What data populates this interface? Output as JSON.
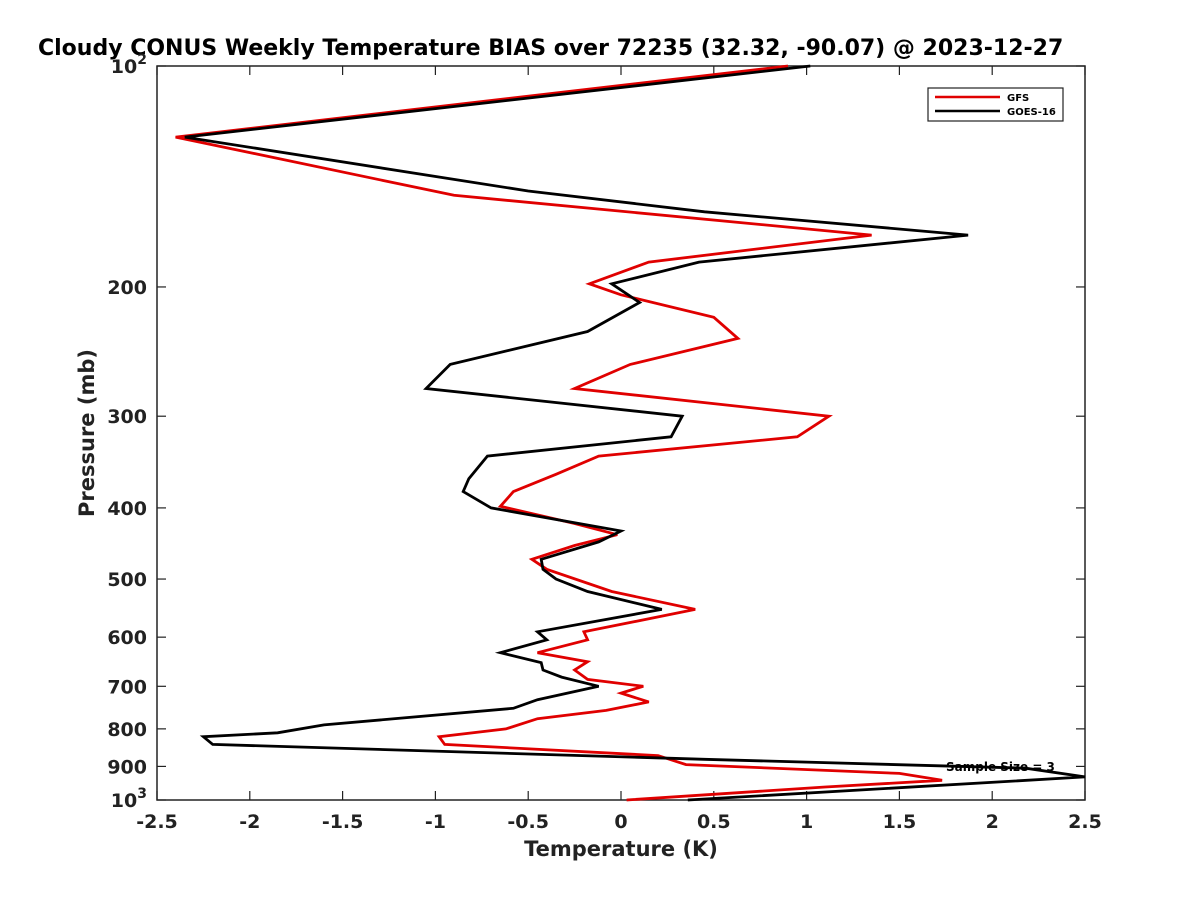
{
  "chart_data": {
    "type": "line",
    "title": "Cloudy CONUS Weekly Temperature BIAS over 72235 (32.32, -90.07) @ 2023-12-27",
    "xlabel": "Temperature (K)",
    "ylabel": "Pressure (mb)",
    "xlim": [
      -2.5,
      2.5
    ],
    "ylim": [
      100,
      1000
    ],
    "yscale": "log",
    "y_reversed": true,
    "grid": false,
    "legend_position": "top-right",
    "x_ticks": [
      -2.5,
      -2,
      -1.5,
      -1,
      -0.5,
      0,
      0.5,
      1,
      1.5,
      2,
      2.5
    ],
    "x_tick_labels": [
      "-2.5",
      "-2",
      "-1.5",
      "-1",
      "-0.5",
      "0",
      "0.5",
      "1",
      "1.5",
      "2",
      "2.5"
    ],
    "y_ticks": [
      {
        "value": 100,
        "label": "10",
        "exp": "2"
      },
      {
        "value": 200,
        "label": "200",
        "exp": ""
      },
      {
        "value": 300,
        "label": "300",
        "exp": ""
      },
      {
        "value": 400,
        "label": "400",
        "exp": ""
      },
      {
        "value": 500,
        "label": "500",
        "exp": ""
      },
      {
        "value": 600,
        "label": "600",
        "exp": ""
      },
      {
        "value": 700,
        "label": "700",
        "exp": ""
      },
      {
        "value": 800,
        "label": "800",
        "exp": ""
      },
      {
        "value": 900,
        "label": "900",
        "exp": ""
      },
      {
        "value": 1000,
        "label": "10",
        "exp": "3"
      }
    ],
    "series": [
      {
        "name": "GFS",
        "color": "#e00000",
        "points": [
          [
            0.9,
            100
          ],
          [
            -2.4,
            125
          ],
          [
            -0.9,
            150
          ],
          [
            1.35,
            170
          ],
          [
            0.15,
            185
          ],
          [
            -0.17,
            198
          ],
          [
            0.0,
            205
          ],
          [
            0.5,
            220
          ],
          [
            0.63,
            235
          ],
          [
            0.05,
            255
          ],
          [
            -0.25,
            275
          ],
          [
            1.12,
            300
          ],
          [
            0.95,
            320
          ],
          [
            -0.12,
            340
          ],
          [
            -0.35,
            360
          ],
          [
            -0.58,
            380
          ],
          [
            -0.65,
            398
          ],
          [
            -0.25,
            420
          ],
          [
            -0.02,
            435
          ],
          [
            -0.25,
            450
          ],
          [
            -0.48,
            470
          ],
          [
            -0.4,
            485
          ],
          [
            -0.05,
            520
          ],
          [
            0.4,
            550
          ],
          [
            -0.2,
            590
          ],
          [
            -0.18,
            605
          ],
          [
            -0.45,
            630
          ],
          [
            -0.18,
            648
          ],
          [
            -0.25,
            665
          ],
          [
            -0.18,
            685
          ],
          [
            0.12,
            700
          ],
          [
            0.0,
            715
          ],
          [
            0.15,
            735
          ],
          [
            -0.08,
            755
          ],
          [
            -0.45,
            775
          ],
          [
            -0.62,
            800
          ],
          [
            -0.98,
            820
          ],
          [
            -0.95,
            840
          ],
          [
            0.2,
            870
          ],
          [
            0.35,
            895
          ],
          [
            1.5,
            920
          ],
          [
            1.73,
            940
          ],
          [
            1.1,
            960
          ],
          [
            0.03,
            1000
          ]
        ]
      },
      {
        "name": "GOES-16",
        "color": "#000000",
        "points": [
          [
            1.02,
            100
          ],
          [
            -2.35,
            125
          ],
          [
            -0.5,
            148
          ],
          [
            0.45,
            158
          ],
          [
            1.87,
            170
          ],
          [
            0.42,
            185
          ],
          [
            -0.05,
            198
          ],
          [
            0.1,
            210
          ],
          [
            -0.18,
            230
          ],
          [
            -0.92,
            255
          ],
          [
            -1.05,
            275
          ],
          [
            0.33,
            300
          ],
          [
            0.27,
            320
          ],
          [
            -0.72,
            340
          ],
          [
            -0.82,
            365
          ],
          [
            -0.85,
            380
          ],
          [
            -0.7,
            400
          ],
          [
            0.0,
            430
          ],
          [
            -0.12,
            445
          ],
          [
            -0.43,
            470
          ],
          [
            -0.42,
            485
          ],
          [
            -0.35,
            500
          ],
          [
            -0.18,
            520
          ],
          [
            0.22,
            550
          ],
          [
            -0.45,
            590
          ],
          [
            -0.4,
            605
          ],
          [
            -0.65,
            630
          ],
          [
            -0.43,
            650
          ],
          [
            -0.42,
            665
          ],
          [
            -0.32,
            680
          ],
          [
            -0.12,
            700
          ],
          [
            -0.45,
            730
          ],
          [
            -0.58,
            750
          ],
          [
            -1.6,
            790
          ],
          [
            -1.85,
            810
          ],
          [
            -2.25,
            820
          ],
          [
            -2.2,
            840
          ],
          [
            0.45,
            880
          ],
          [
            2.18,
            905
          ],
          [
            2.5,
            930
          ],
          [
            0.36,
            1000
          ]
        ]
      }
    ],
    "annotations": [
      "Sample Size = 3"
    ]
  }
}
